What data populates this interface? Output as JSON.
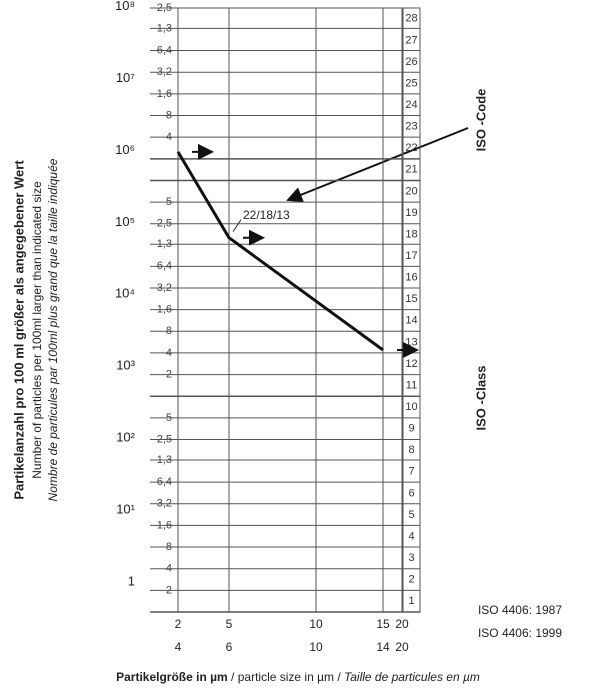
{
  "chart_data": {
    "type": "line",
    "y_scale": "log",
    "ylim": [
      1,
      250000000
    ],
    "yticks": [
      1,
      {
        "value": 10,
        "label": "10¹"
      },
      {
        "value": 100,
        "label": "10²"
      },
      {
        "value": 1000,
        "label": "10³"
      },
      {
        "value": 10000,
        "label": "10⁴"
      },
      {
        "value": 100000,
        "label": "10⁵"
      },
      {
        "value": 1000000,
        "label": "10⁶"
      },
      {
        "value": 10000000,
        "label": "10⁷"
      },
      {
        "value": 100000000,
        "label": "10⁸"
      }
    ],
    "minor_yticks": [
      {
        "value": 250000000,
        "label": "2,5"
      },
      {
        "value": 130000000,
        "label": "1,3"
      },
      {
        "value": 64000000,
        "label": "6,4"
      },
      {
        "value": 32000000,
        "label": "3,2"
      },
      {
        "value": 16000000,
        "label": "1,6"
      },
      {
        "value": 8000000,
        "label": "8"
      },
      {
        "value": 4000000,
        "label": "4"
      },
      {
        "value": 500000,
        "label": "5"
      },
      {
        "value": 250000,
        "label": "2,5"
      },
      {
        "value": 130000,
        "label": "1,3"
      },
      {
        "value": 64000,
        "label": "6,4"
      },
      {
        "value": 32000,
        "label": "3,2"
      },
      {
        "value": 16000,
        "label": "1,6"
      },
      {
        "value": 8000,
        "label": "8"
      },
      {
        "value": 4000,
        "label": "4"
      },
      {
        "value": 2000,
        "label": "2"
      },
      {
        "value": 500,
        "label": "5"
      },
      {
        "value": 250,
        "label": "2,5"
      },
      {
        "value": 130,
        "label": "1,3"
      },
      {
        "value": 64,
        "label": "6,4"
      },
      {
        "value": 32,
        "label": "3,2"
      },
      {
        "value": 16,
        "label": "1,6"
      },
      8,
      4,
      2
    ],
    "extra_grid": [
      2000000,
      1000000,
      1000
    ],
    "x": [
      4,
      6,
      14
    ],
    "xticks": [
      4,
      6,
      10,
      14,
      20
    ],
    "xticks_1987": [
      2,
      5,
      10,
      15,
      20
    ],
    "series": [
      {
        "color": "#111111",
        "values": [
          2500000,
          160000,
          4400
        ]
      }
    ],
    "iso_classes": [
      1,
      2,
      3,
      4,
      5,
      6,
      7,
      8,
      9,
      10,
      11,
      12,
      13,
      14,
      15,
      16,
      17,
      18,
      19,
      20,
      21,
      22,
      23,
      24,
      25,
      26,
      27,
      28
    ],
    "code_label": "22/18/13",
    "iso_code_label": "ISO -Code",
    "iso_class_label": "ISO -Class",
    "standard_1987": "ISO 4406: 1987",
    "standard_1999": "ISO 4406: 1999",
    "y_label": [
      "Partikelanzahl pro 100 ml größer als angegebener Wert",
      "Number of particles per 100ml larger than indicated size",
      "Nombre de particules par 100ml plus grand que la taille indiquée"
    ],
    "x_label": [
      "Partikelgröße in µm",
      " / particle size in µm / ",
      "Taille de particules en µm"
    ]
  }
}
